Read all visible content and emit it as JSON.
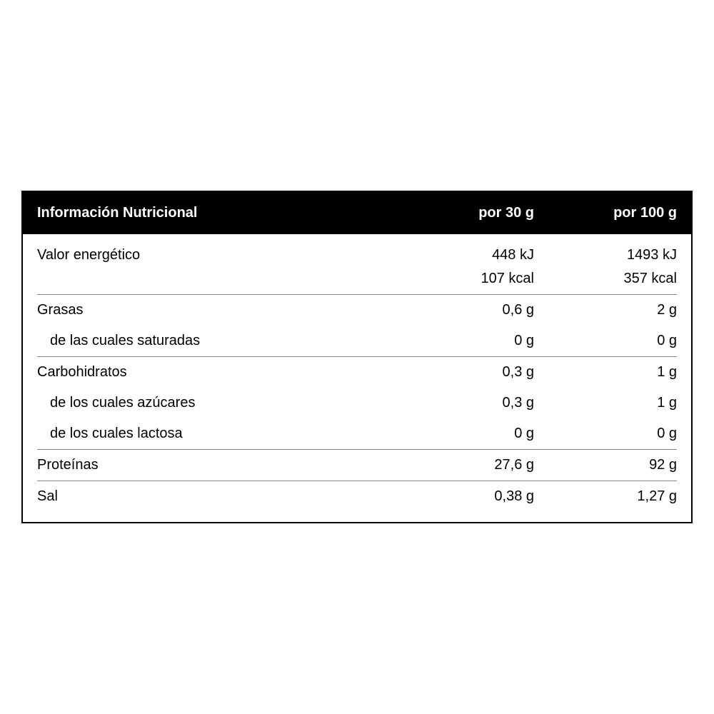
{
  "table": {
    "title": "Información Nutricional",
    "col1_header": "por 30 g",
    "col2_header": "por 100 g",
    "header_bg": "#000000",
    "header_fg": "#ffffff",
    "border_color": "#000000",
    "divider_color": "#888888",
    "font_size_header": 20,
    "font_size_body": 20,
    "rows": [
      {
        "label": "Valor energético",
        "v1": "448 kJ",
        "v2": "1493 kJ",
        "border_top": false,
        "indent": false
      },
      {
        "label": "",
        "v1": "107 kcal",
        "v2": "357 kcal",
        "border_top": false,
        "indent": false,
        "continuation": true
      },
      {
        "label": "Grasas",
        "v1": "0,6 g",
        "v2": "2 g",
        "border_top": true,
        "indent": false
      },
      {
        "label": "de las cuales saturadas",
        "v1": "0 g",
        "v2": "0 g",
        "border_top": false,
        "indent": true
      },
      {
        "label": "Carbohidratos",
        "v1": "0,3 g",
        "v2": "1 g",
        "border_top": true,
        "indent": false
      },
      {
        "label": "de los cuales azúcares",
        "v1": "0,3 g",
        "v2": "1 g",
        "border_top": false,
        "indent": true
      },
      {
        "label": "de los cuales lactosa",
        "v1": "0 g",
        "v2": "0 g",
        "border_top": false,
        "indent": true
      },
      {
        "label": "Proteínas",
        "v1": "27,6 g",
        "v2": "92 g",
        "border_top": true,
        "indent": false
      },
      {
        "label": "Sal",
        "v1": "0,38 g",
        "v2": "1,27 g",
        "border_top": true,
        "indent": false
      }
    ]
  }
}
